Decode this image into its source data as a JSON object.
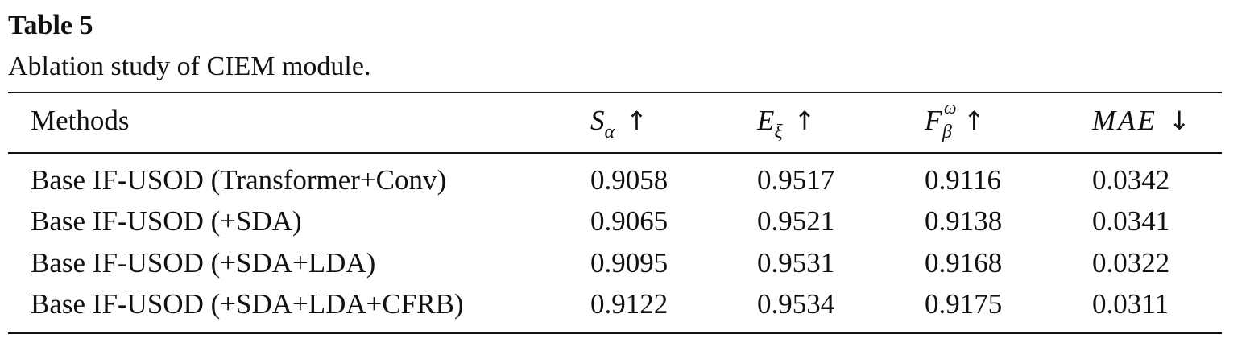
{
  "table": {
    "label": "Table 5",
    "caption": "Ablation study of CIEM module.",
    "headers": {
      "methods": "Methods",
      "s_alpha": {
        "main": "S",
        "sub": "α",
        "arrow": "↑"
      },
      "e_xi": {
        "main": "E",
        "sub": "ξ",
        "arrow": "↑"
      },
      "f_beta_omega": {
        "main": "F",
        "sup": "ω",
        "sub": "β",
        "arrow": "↑"
      },
      "mae": {
        "main": "MAE",
        "arrow": "↓"
      }
    },
    "rows": [
      {
        "method": "Base IF-USOD (Transformer+Conv)",
        "s_alpha": "0.9058",
        "e_xi": "0.9517",
        "f_beta_omega": "0.9116",
        "mae": "0.0342"
      },
      {
        "method": "Base IF-USOD (+SDA)",
        "s_alpha": "0.9065",
        "e_xi": "0.9521",
        "f_beta_omega": "0.9138",
        "mae": "0.0341"
      },
      {
        "method": "Base IF-USOD (+SDA+LDA)",
        "s_alpha": "0.9095",
        "e_xi": "0.9531",
        "f_beta_omega": "0.9168",
        "mae": "0.0322"
      },
      {
        "method": "Base IF-USOD (+SDA+LDA+CFRB)",
        "s_alpha": "0.9122",
        "e_xi": "0.9534",
        "f_beta_omega": "0.9175",
        "mae": "0.0311"
      }
    ]
  }
}
